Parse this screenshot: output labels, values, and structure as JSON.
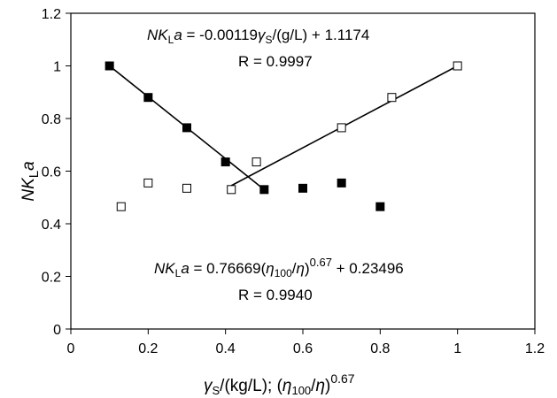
{
  "chart_data": {
    "type": "scatter",
    "xlim": [
      0,
      1.2
    ],
    "ylim": [
      0,
      1.2
    ],
    "x_ticks": [
      "0",
      "0.2",
      "0.4",
      "0.6",
      "0.8",
      "1",
      "1.2"
    ],
    "y_ticks": [
      "0",
      "0.2",
      "0.4",
      "0.6",
      "0.8",
      "1",
      "1.2"
    ],
    "grid": false,
    "xlabel": {
      "gamma": "γ",
      "s1": "S",
      "p1": "/(kg/L); (",
      "eta1": "η",
      "s2": "100",
      "p2": "/",
      "eta2": "η",
      "p3": ")",
      "exp": "0.67"
    },
    "ylabel": {
      "nk": "NK",
      "sub": "L",
      "a": "a"
    },
    "series": [
      {
        "marker": "filled-square",
        "color": "#000000",
        "points": [
          [
            0.1,
            1.0
          ],
          [
            0.2,
            0.88
          ],
          [
            0.3,
            0.765
          ],
          [
            0.4,
            0.635
          ],
          [
            0.5,
            0.53
          ],
          [
            0.6,
            0.535
          ],
          [
            0.7,
            0.555
          ],
          [
            0.8,
            0.465
          ]
        ],
        "fit": {
          "from": [
            0.1,
            1.0
          ],
          "to": [
            0.5,
            0.53
          ]
        }
      },
      {
        "marker": "open-square",
        "color": "#000000",
        "points": [
          [
            0.13,
            0.465
          ],
          [
            0.2,
            0.555
          ],
          [
            0.3,
            0.535
          ],
          [
            0.415,
            0.53
          ],
          [
            0.48,
            0.635
          ],
          [
            0.7,
            0.765
          ],
          [
            0.83,
            0.88
          ],
          [
            1.0,
            1.0
          ]
        ],
        "fit": {
          "from": [
            0.415,
            0.545
          ],
          "to": [
            1.0,
            1.0
          ]
        }
      }
    ],
    "annotations": {
      "eq1": {
        "nk": "NK",
        "sub": "L",
        "a": "a",
        "mid": " = -0.00119",
        "gamma": "γ",
        "s": "S",
        "tail": "/(g/L) + 1.1174"
      },
      "r1": "R = 0.9997",
      "eq2": {
        "nk": "NK",
        "sub": "L",
        "a": "a",
        "mid": " = 0.76669(",
        "eta1": "η",
        "s100": "100",
        "slash": "/",
        "eta2": "η",
        "close": ")",
        "exp": "0.67",
        "tail": " + 0.23496"
      },
      "r2": "R = 0.9940"
    }
  }
}
